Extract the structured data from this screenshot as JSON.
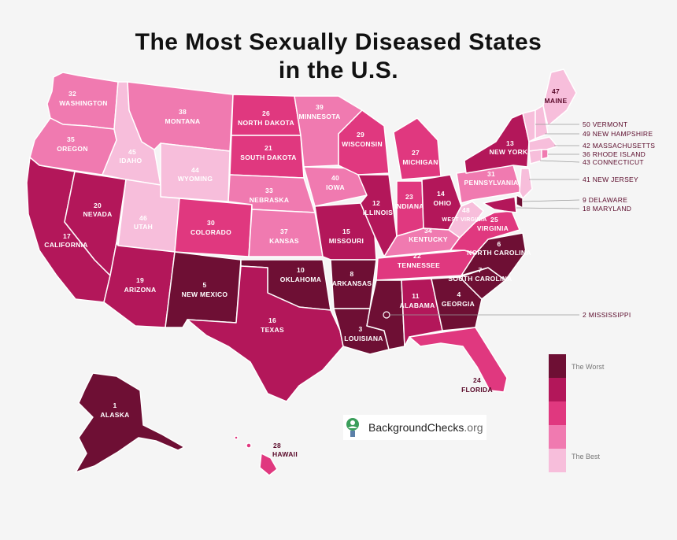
{
  "title_line1": "The Most Sexually Diseased States",
  "title_line2": "in the U.S.",
  "colors": {
    "rank_1_10": "#6e0f34",
    "rank_11_20": "#b3175a",
    "rank_21_30": "#e0387f",
    "rank_31_40": "#f07ab0",
    "rank_41_50": "#f7bedb"
  },
  "legend": {
    "worst": "The Worst",
    "best": "The Best"
  },
  "logo": {
    "name": "BackgroundChecks",
    "suffix": ".org",
    "icon": "magnifier-person-icon"
  },
  "states": {
    "WA": {
      "rank": "32",
      "name": "WASHINGTON"
    },
    "OR": {
      "rank": "35",
      "name": "OREGON"
    },
    "CA": {
      "rank": "17",
      "name": "CALIFORNIA"
    },
    "NV": {
      "rank": "20",
      "name": "NEVADA"
    },
    "ID": {
      "rank": "45",
      "name": "IDAHO"
    },
    "MT": {
      "rank": "38",
      "name": "MONTANA"
    },
    "WY": {
      "rank": "44",
      "name": "WYOMING"
    },
    "UT": {
      "rank": "46",
      "name": "UTAH"
    },
    "AZ": {
      "rank": "19",
      "name": "ARIZONA"
    },
    "CO": {
      "rank": "30",
      "name": "COLORADO"
    },
    "NM": {
      "rank": "5",
      "name": "NEW MEXICO"
    },
    "ND": {
      "rank": "26",
      "name": "NORTH DAKOTA"
    },
    "SD": {
      "rank": "21",
      "name": "SOUTH DAKOTA"
    },
    "NE": {
      "rank": "33",
      "name": "NEBRASKA"
    },
    "KS": {
      "rank": "37",
      "name": "KANSAS"
    },
    "OK": {
      "rank": "10",
      "name": "OKLAHOMA"
    },
    "TX": {
      "rank": "16",
      "name": "TEXAS"
    },
    "MN": {
      "rank": "39",
      "name": "MINNESOTA"
    },
    "IA": {
      "rank": "40",
      "name": "IOWA"
    },
    "MO": {
      "rank": "15",
      "name": "MISSOURI"
    },
    "AR": {
      "rank": "8",
      "name": "ARKANSAS"
    },
    "LA": {
      "rank": "3",
      "name": "LOUISIANA"
    },
    "WI": {
      "rank": "29",
      "name": "WISCONSIN"
    },
    "IL": {
      "rank": "12",
      "name": "ILLINOIS"
    },
    "MI": {
      "rank": "27",
      "name": "MICHIGAN"
    },
    "IN": {
      "rank": "23",
      "name": "INDIANA"
    },
    "OH": {
      "rank": "14",
      "name": "OHIO"
    },
    "KY": {
      "rank": "34",
      "name": "KENTUCKY"
    },
    "TN": {
      "rank": "22",
      "name": "TENNESSEE"
    },
    "MS": {
      "rank": "2",
      "name": "MISSISSIPPI"
    },
    "AL": {
      "rank": "11",
      "name": "ALABAMA"
    },
    "GA": {
      "rank": "4",
      "name": "GEORGIA"
    },
    "FL": {
      "rank": "24",
      "name": "FLORIDA"
    },
    "SC": {
      "rank": "7",
      "name": "SOUTH CAROLINA"
    },
    "NC": {
      "rank": "6",
      "name": "NORTH CAROLINA"
    },
    "VA": {
      "rank": "25",
      "name": "VIRGINIA"
    },
    "WV": {
      "rank": "48",
      "name": "WEST VIRGINIA"
    },
    "PA": {
      "rank": "31",
      "name": "PENNSYLVANIA"
    },
    "NY": {
      "rank": "13",
      "name": "NEW YORK"
    },
    "ME": {
      "rank": "47",
      "name": "MAINE"
    },
    "VT": {
      "rank": "50",
      "name": "VERMONT"
    },
    "NH": {
      "rank": "49",
      "name": "NEW HAMPSHIRE"
    },
    "MA": {
      "rank": "42",
      "name": "MASSACHUSETTS"
    },
    "RI": {
      "rank": "36",
      "name": "RHODE ISLAND"
    },
    "CT": {
      "rank": "43",
      "name": "CONNECTICUT"
    },
    "NJ": {
      "rank": "41",
      "name": "NEW JERSEY"
    },
    "DE": {
      "rank": "9",
      "name": "DELAWARE"
    },
    "MD": {
      "rank": "18",
      "name": "MARYLAND"
    },
    "AK": {
      "rank": "1",
      "name": "ALASKA"
    },
    "HI": {
      "rank": "28",
      "name": "HAWAII"
    }
  },
  "side_labels": {
    "VT": "50 VERMONT",
    "NH": "49 NEW HAMPSHIRE",
    "MA": "42 MASSACHUSETTS",
    "RI": "36 RHODE ISLAND",
    "CT": "43 CONNECTICUT",
    "NJ": "41 NEW JERSEY",
    "DE": "9 DELAWARE",
    "MD": "18 MARYLAND",
    "MS": "2 MISSISSIPPI"
  }
}
